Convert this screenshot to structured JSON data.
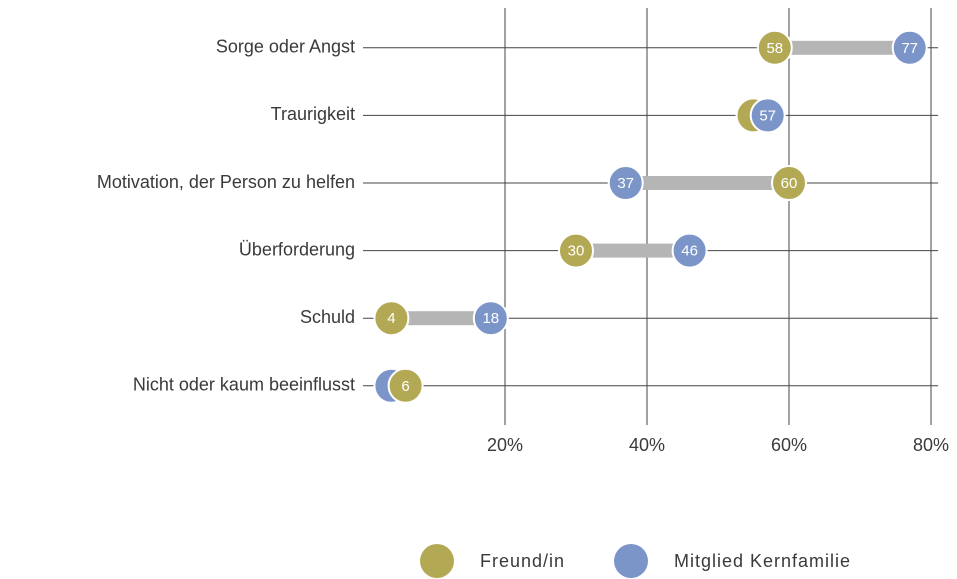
{
  "chart_data": {
    "type": "dumbbell",
    "categories": [
      "Sorge oder Angst",
      "Traurigkeit",
      "Motivation, der Person zu helfen",
      "Überforderung",
      "Schuld",
      "Nicht oder kaum beeinflusst"
    ],
    "series": [
      {
        "name": "Freund/in",
        "color": "#b3a955",
        "values": [
          58,
          55,
          60,
          30,
          4,
          6
        ],
        "value_labels": [
          "58",
          null,
          "60",
          "30",
          "4",
          "6"
        ]
      },
      {
        "name": "Mitglied Kernfamilie",
        "color": "#7b95c8",
        "values": [
          77,
          57,
          37,
          46,
          18,
          4
        ],
        "value_labels": [
          "77",
          "57",
          "37",
          "46",
          "18",
          null
        ]
      }
    ],
    "xlim": [
      0,
      81
    ],
    "xticks": [
      {
        "value": 20,
        "label": "20%"
      },
      {
        "value": 40,
        "label": "40%"
      },
      {
        "value": 60,
        "label": "60%"
      },
      {
        "value": 80,
        "label": "80%"
      }
    ],
    "grid": true,
    "legend": "bottom"
  }
}
